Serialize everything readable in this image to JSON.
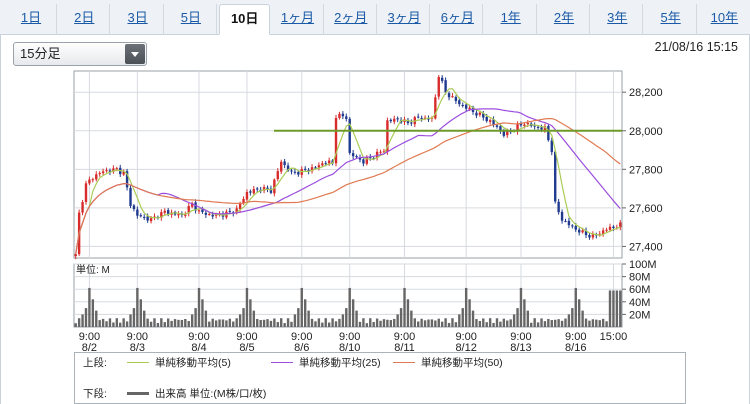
{
  "tabs": [
    {
      "label": "1日"
    },
    {
      "label": "2日"
    },
    {
      "label": "3日"
    },
    {
      "label": "5日"
    },
    {
      "label": "10日"
    },
    {
      "label": "1ヶ月"
    },
    {
      "label": "2ヶ月"
    },
    {
      "label": "3ヶ月"
    },
    {
      "label": "6ヶ月"
    },
    {
      "label": "1年"
    },
    {
      "label": "2年"
    },
    {
      "label": "3年"
    },
    {
      "label": "5年"
    },
    {
      "label": "10年"
    }
  ],
  "active_tab": 4,
  "interval_select": {
    "value": "15分足"
  },
  "timestamp": "21/08/16 15:15",
  "colors": {
    "up": "#d82c2c",
    "down": "#1f3a8f",
    "ma5": "#aacc55",
    "ma25": "#9b4dde",
    "ma50": "#e07a52",
    "hline": "#6e9a2a",
    "volume": "#666666"
  },
  "legend": {
    "upper_label": "上段:",
    "ma5_label": "単純移動平均(5)",
    "ma25_label": "単純移動平均(25)",
    "ma50_label": "単純移動平均(50)",
    "lower_label": "下段:",
    "volume_label": "出来高 単位:(M株/口/枚)"
  },
  "chart_data": {
    "type": "candlestick",
    "price_axis": {
      "ticks": [
        "28,200",
        "28,000",
        "27,800",
        "27,600",
        "27,400"
      ],
      "values": [
        28200,
        28000,
        27800,
        27600,
        27400
      ],
      "range": [
        27340,
        28310
      ]
    },
    "reference_line": 28000,
    "volume_axis": {
      "unit_label": "単位: M",
      "ticks": [
        "100M",
        "80M",
        "60M",
        "40M",
        "20M"
      ],
      "values": [
        100,
        80,
        60,
        40,
        20
      ],
      "range": [
        0,
        100
      ]
    },
    "x_labels": [
      {
        "time": "9:00",
        "date": "8/2"
      },
      {
        "time": "9:00",
        "date": "8/3"
      },
      {
        "time": "9:00",
        "date": "8/4"
      },
      {
        "time": "9:00",
        "date": "8/5"
      },
      {
        "time": "9:00",
        "date": "8/6"
      },
      {
        "time": "9:00",
        "date": "8/10"
      },
      {
        "time": "9:00",
        "date": "8/11"
      },
      {
        "time": "9:00",
        "date": "8/12"
      },
      {
        "time": "9:00",
        "date": "8/13"
      },
      {
        "time": "9:00",
        "date": "8/16"
      },
      {
        "time": "15:00",
        "date": ""
      }
    ],
    "price_keypoints": [
      [
        0,
        27360
      ],
      [
        1,
        27570
      ],
      [
        3,
        27720
      ],
      [
        5,
        27760
      ],
      [
        8,
        27790
      ],
      [
        12,
        27800
      ],
      [
        14,
        27780
      ],
      [
        16,
        27620
      ],
      [
        18,
        27560
      ],
      [
        22,
        27540
      ],
      [
        26,
        27580
      ],
      [
        31,
        27560
      ],
      [
        34,
        27620
      ],
      [
        36,
        27580
      ],
      [
        40,
        27560
      ],
      [
        44,
        27570
      ],
      [
        47,
        27590
      ],
      [
        50,
        27680
      ],
      [
        54,
        27700
      ],
      [
        57,
        27690
      ],
      [
        60,
        27840
      ],
      [
        63,
        27780
      ],
      [
        66,
        27790
      ],
      [
        70,
        27810
      ],
      [
        73,
        27840
      ],
      [
        75,
        27830
      ],
      [
        76,
        28080
      ],
      [
        79,
        28070
      ],
      [
        80,
        27880
      ],
      [
        84,
        27840
      ],
      [
        88,
        27880
      ],
      [
        90,
        27900
      ],
      [
        91,
        28050
      ],
      [
        94,
        28060
      ],
      [
        97,
        28040
      ],
      [
        100,
        28070
      ],
      [
        104,
        28060
      ],
      [
        106,
        28290
      ],
      [
        108,
        28200
      ],
      [
        112,
        28140
      ],
      [
        116,
        28100
      ],
      [
        120,
        28060
      ],
      [
        123,
        28020
      ],
      [
        125,
        27980
      ],
      [
        128,
        28010
      ],
      [
        131,
        28040
      ],
      [
        134,
        28020
      ],
      [
        137,
        28010
      ],
      [
        139,
        27900
      ],
      [
        140,
        27620
      ],
      [
        142,
        27540
      ],
      [
        145,
        27500
      ],
      [
        148,
        27470
      ],
      [
        151,
        27450
      ],
      [
        155,
        27490
      ],
      [
        159,
        27510
      ]
    ],
    "volume_profile": "session-peaks"
  }
}
